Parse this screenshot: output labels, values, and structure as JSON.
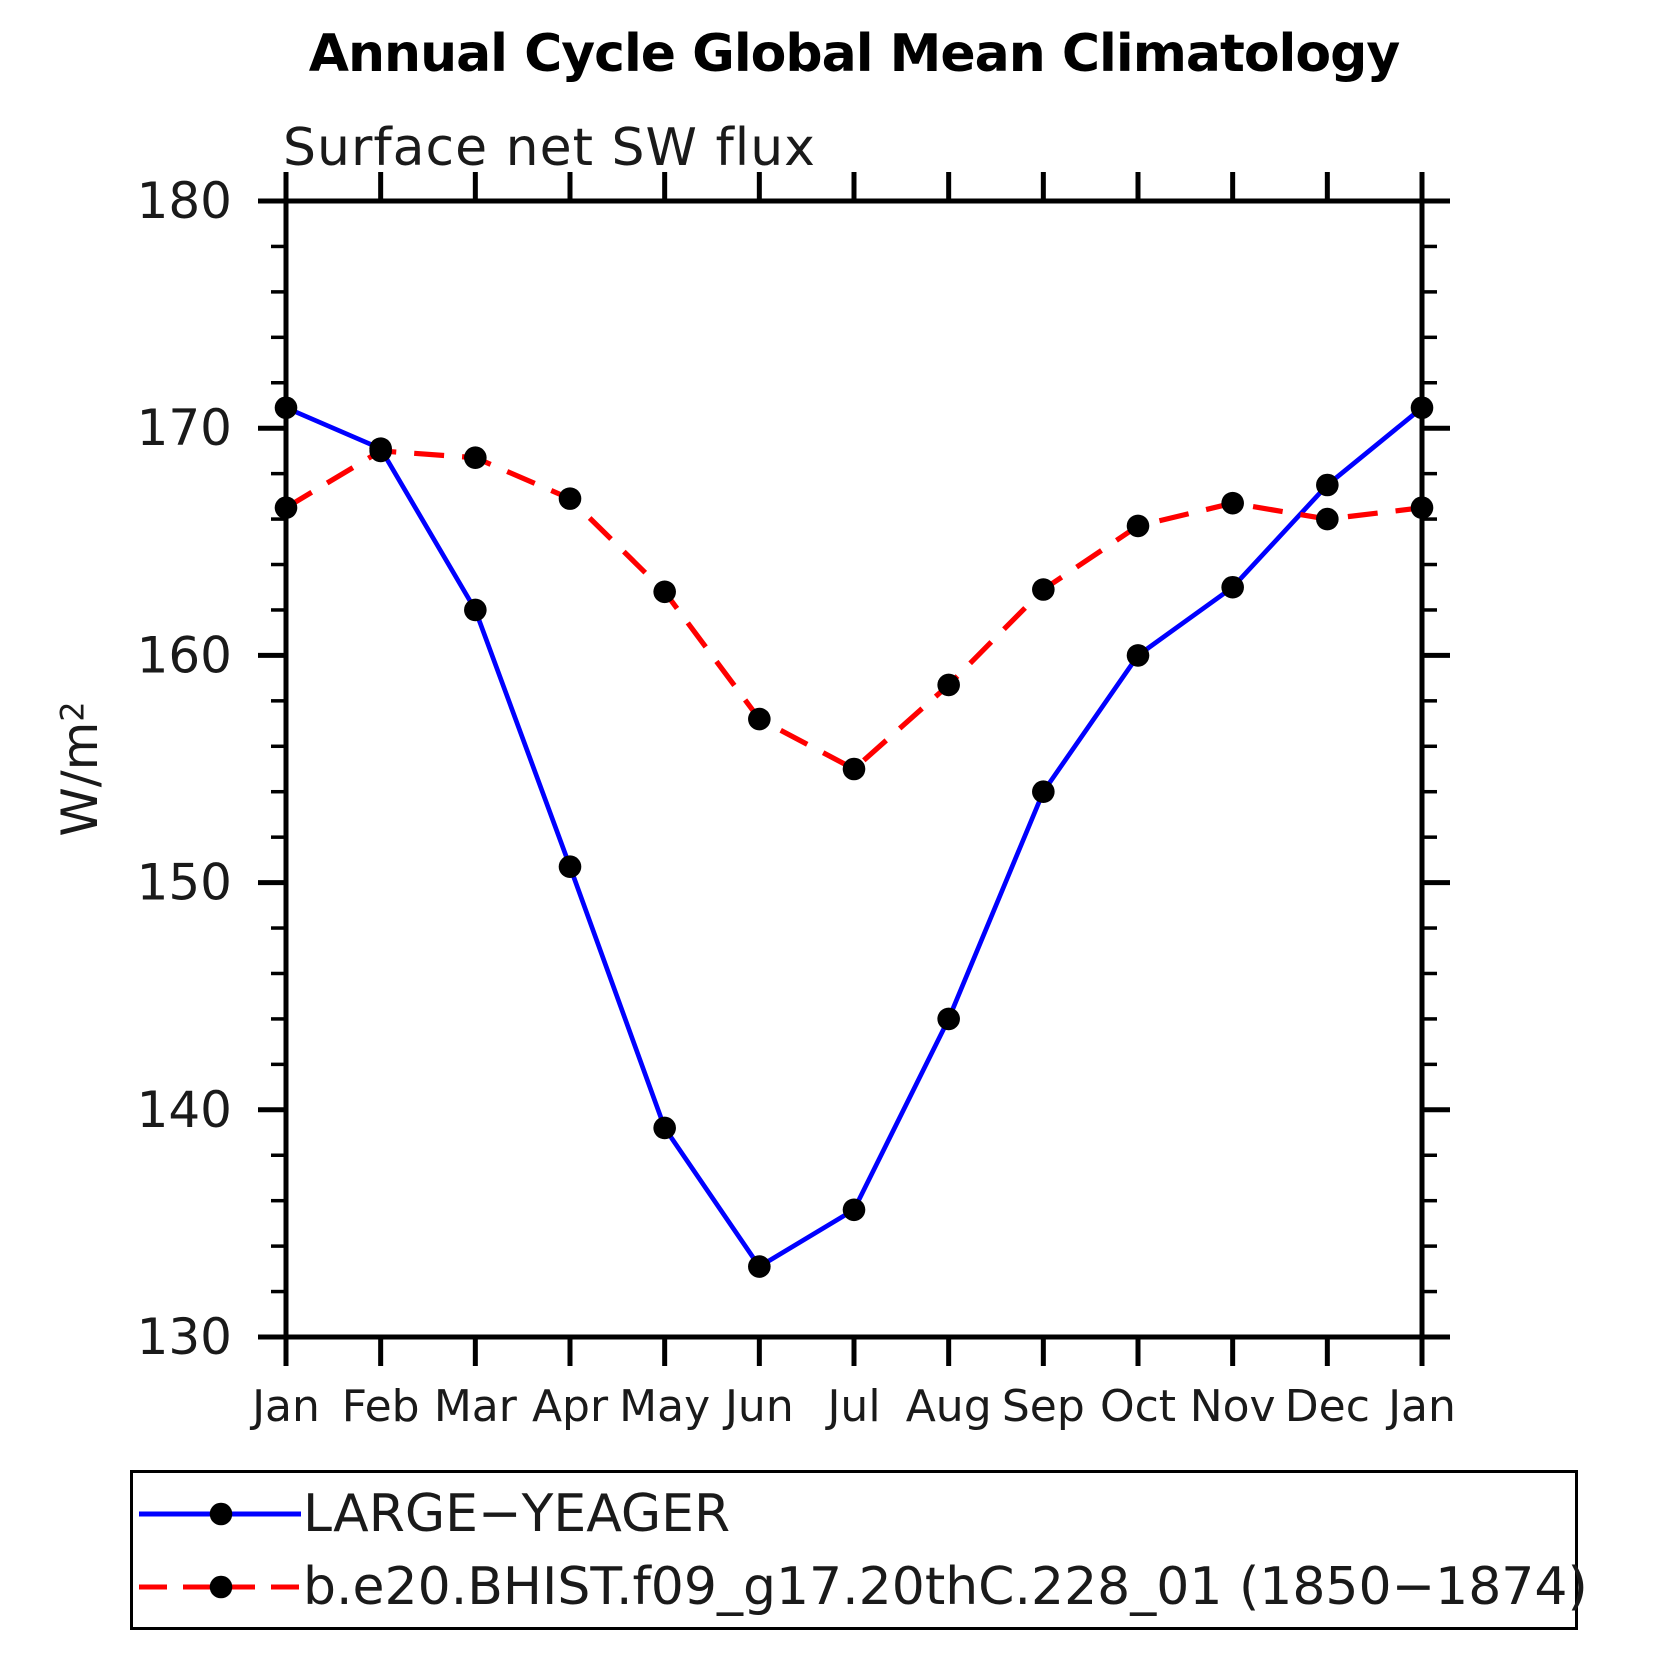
{
  "chart": {
    "title": "Annual Cycle Global Mean Climatology",
    "subtitle": "Surface net SW flux"
  },
  "chart_data": {
    "type": "line",
    "title": "Annual Cycle Global Mean Climatology",
    "subtitle": "Surface net SW flux",
    "categories": [
      "Jan",
      "Feb",
      "Mar",
      "Apr",
      "May",
      "Jun",
      "Jul",
      "Aug",
      "Sep",
      "Oct",
      "Nov",
      "Dec",
      "Jan"
    ],
    "series": [
      {
        "name": "LARGE−YEAGER",
        "color": "#0000ff",
        "line_style": "solid",
        "marker": "filled-circle",
        "marker_color": "#000000",
        "values": [
          170.9,
          169.1,
          162.0,
          150.7,
          139.2,
          133.1,
          135.6,
          144.0,
          154.0,
          160.0,
          163.0,
          167.5,
          170.9
        ]
      },
      {
        "name": "b.e20.BHIST.f09_g17.20thC.228_01 (1850−1874)",
        "color": "#ff0000",
        "line_style": "dashed",
        "marker": "filled-circle",
        "marker_color": "#000000",
        "values": [
          166.5,
          169.0,
          168.7,
          166.9,
          162.8,
          157.2,
          155.0,
          158.7,
          162.9,
          165.7,
          166.7,
          166.0,
          166.5
        ]
      }
    ],
    "xlabel": "",
    "ylabel": "W/m²",
    "ylabel_base": "W/m",
    "ylabel_exponent": "2",
    "ylim": [
      130,
      180
    ],
    "yticks": [
      130,
      140,
      150,
      160,
      170,
      180
    ],
    "y_minor_step": 2,
    "grid": false,
    "legend_position": "bottom-left-box"
  },
  "colors": {
    "axis": "#000000",
    "text": "#1a1a1a",
    "background": "#ffffff",
    "series_blue": "#0000ff",
    "series_red": "#ff0000",
    "marker": "#000000"
  }
}
